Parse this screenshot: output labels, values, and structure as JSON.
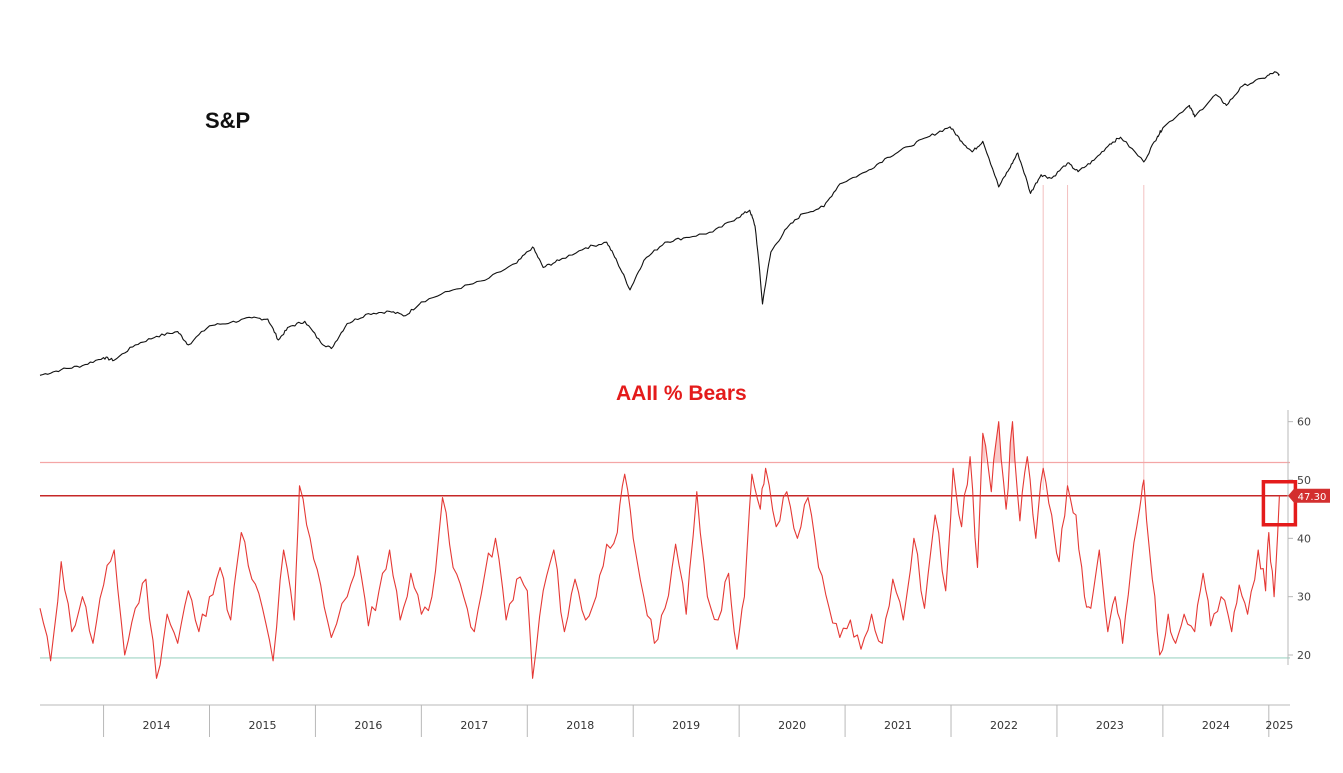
{
  "colors": {
    "sp_line": "#111111",
    "bears_line": "#e53935",
    "upper_band": "#f4a6a6",
    "ref_line": "#c62828",
    "lower_band": "#9fd4c4",
    "highlight_box": "#e41b1b",
    "badge": "#d32f2f",
    "axis": "#b8b8b8",
    "drop_lines": "#f3c0c0",
    "fill": "#f8b4b4"
  },
  "chart_data": [
    {
      "type": "line",
      "title": "S&P",
      "x_range": [
        2013.4,
        2025.2
      ],
      "series": [
        {
          "name": "",
          "points": [
            [
              2013.4,
              1650
            ],
            [
              2013.6,
              1690
            ],
            [
              2013.8,
              1720
            ],
            [
              2014.0,
              1780
            ],
            [
              2014.1,
              1760
            ],
            [
              2014.3,
              1880
            ],
            [
              2014.5,
              1950
            ],
            [
              2014.7,
              1990
            ],
            [
              2014.8,
              1880
            ],
            [
              2015.0,
              2040
            ],
            [
              2015.2,
              2070
            ],
            [
              2015.4,
              2110
            ],
            [
              2015.55,
              2100
            ],
            [
              2015.65,
              1920
            ],
            [
              2015.75,
              2030
            ],
            [
              2015.9,
              2080
            ],
            [
              2016.05,
              1900
            ],
            [
              2016.15,
              1850
            ],
            [
              2016.3,
              2060
            ],
            [
              2016.5,
              2150
            ],
            [
              2016.7,
              2170
            ],
            [
              2016.85,
              2130
            ],
            [
              2017.0,
              2260
            ],
            [
              2017.3,
              2380
            ],
            [
              2017.6,
              2480
            ],
            [
              2017.9,
              2670
            ],
            [
              2018.05,
              2860
            ],
            [
              2018.15,
              2620
            ],
            [
              2018.3,
              2700
            ],
            [
              2018.55,
              2850
            ],
            [
              2018.75,
              2920
            ],
            [
              2018.85,
              2680
            ],
            [
              2018.97,
              2380
            ],
            [
              2019.1,
              2700
            ],
            [
              2019.3,
              2920
            ],
            [
              2019.5,
              2980
            ],
            [
              2019.75,
              3050
            ],
            [
              2019.98,
              3240
            ],
            [
              2020.1,
              3350
            ],
            [
              2020.15,
              3130
            ],
            [
              2020.22,
              2240
            ],
            [
              2020.3,
              2800
            ],
            [
              2020.45,
              3100
            ],
            [
              2020.6,
              3300
            ],
            [
              2020.8,
              3400
            ],
            [
              2020.95,
              3750
            ],
            [
              2021.2,
              3950
            ],
            [
              2021.4,
              4200
            ],
            [
              2021.6,
              4400
            ],
            [
              2021.8,
              4600
            ],
            [
              2021.99,
              4790
            ],
            [
              2022.1,
              4500
            ],
            [
              2022.2,
              4300
            ],
            [
              2022.3,
              4500
            ],
            [
              2022.45,
              3700
            ],
            [
              2022.55,
              4000
            ],
            [
              2022.63,
              4280
            ],
            [
              2022.75,
              3600
            ],
            [
              2022.85,
              3900
            ],
            [
              2022.95,
              3840
            ],
            [
              2023.1,
              4100
            ],
            [
              2023.2,
              3950
            ],
            [
              2023.35,
              4150
            ],
            [
              2023.5,
              4450
            ],
            [
              2023.6,
              4580
            ],
            [
              2023.82,
              4120
            ],
            [
              2023.95,
              4600
            ],
            [
              2024.0,
              4770
            ],
            [
              2024.25,
              5250
            ],
            [
              2024.3,
              5000
            ],
            [
              2024.5,
              5500
            ],
            [
              2024.6,
              5250
            ],
            [
              2024.75,
              5700
            ],
            [
              2024.95,
              5900
            ],
            [
              2025.05,
              6050
            ],
            [
              2025.1,
              6000
            ]
          ]
        }
      ]
    },
    {
      "type": "line",
      "title": "AAII % Bears",
      "x_range": [
        2013.4,
        2025.2
      ],
      "ylim": [
        14,
        62
      ],
      "yticks": [
        "20",
        "30",
        "40",
        "50",
        "60"
      ],
      "xticks": [
        "2014",
        "2015",
        "2016",
        "2017",
        "2018",
        "2019",
        "2020",
        "2021",
        "2022",
        "2023",
        "2024",
        "2025"
      ],
      "reference_lines": [
        53,
        47.3,
        19.5
      ],
      "last_value_label": "47.30",
      "series": [
        {
          "name": "",
          "points": [
            [
              2013.4,
              28
            ],
            [
              2013.5,
              19
            ],
            [
              2013.6,
              36
            ],
            [
              2013.7,
              24
            ],
            [
              2013.8,
              30
            ],
            [
              2013.9,
              22
            ],
            [
              2014.0,
              32
            ],
            [
              2014.1,
              38
            ],
            [
              2014.2,
              20
            ],
            [
              2014.3,
              28
            ],
            [
              2014.4,
              33
            ],
            [
              2014.5,
              16
            ],
            [
              2014.6,
              27
            ],
            [
              2014.7,
              22
            ],
            [
              2014.8,
              31
            ],
            [
              2014.9,
              24
            ],
            [
              2015.0,
              30
            ],
            [
              2015.1,
              35
            ],
            [
              2015.2,
              26
            ],
            [
              2015.3,
              41
            ],
            [
              2015.4,
              33
            ],
            [
              2015.5,
              28
            ],
            [
              2015.6,
              19
            ],
            [
              2015.7,
              38
            ],
            [
              2015.8,
              26
            ],
            [
              2015.85,
              49
            ],
            [
              2015.95,
              40
            ],
            [
              2016.05,
              32
            ],
            [
              2016.15,
              23
            ],
            [
              2016.3,
              30
            ],
            [
              2016.4,
              37
            ],
            [
              2016.5,
              25
            ],
            [
              2016.6,
              31
            ],
            [
              2016.7,
              38
            ],
            [
              2016.8,
              26
            ],
            [
              2016.9,
              34
            ],
            [
              2017.0,
              27
            ],
            [
              2017.1,
              30
            ],
            [
              2017.2,
              47
            ],
            [
              2017.3,
              35
            ],
            [
              2017.4,
              30
            ],
            [
              2017.5,
              24
            ],
            [
              2017.6,
              34
            ],
            [
              2017.7,
              40
            ],
            [
              2017.8,
              26
            ],
            [
              2017.9,
              33
            ],
            [
              2018.0,
              31
            ],
            [
              2018.05,
              16
            ],
            [
              2018.15,
              31
            ],
            [
              2018.25,
              38
            ],
            [
              2018.35,
              24
            ],
            [
              2018.45,
              33
            ],
            [
              2018.55,
              26
            ],
            [
              2018.65,
              30
            ],
            [
              2018.75,
              39
            ],
            [
              2018.85,
              41
            ],
            [
              2018.92,
              51
            ],
            [
              2019.0,
              40
            ],
            [
              2019.1,
              30
            ],
            [
              2019.2,
              22
            ],
            [
              2019.3,
              28
            ],
            [
              2019.4,
              39
            ],
            [
              2019.5,
              27
            ],
            [
              2019.6,
              48
            ],
            [
              2019.7,
              30
            ],
            [
              2019.8,
              26
            ],
            [
              2019.9,
              34
            ],
            [
              2019.98,
              21
            ],
            [
              2020.05,
              30
            ],
            [
              2020.12,
              51
            ],
            [
              2020.2,
              45
            ],
            [
              2020.25,
              52
            ],
            [
              2020.35,
              42
            ],
            [
              2020.45,
              48
            ],
            [
              2020.55,
              40
            ],
            [
              2020.65,
              47
            ],
            [
              2020.75,
              35
            ],
            [
              2020.85,
              28
            ],
            [
              2020.95,
              23
            ],
            [
              2021.05,
              26
            ],
            [
              2021.15,
              21
            ],
            [
              2021.25,
              27
            ],
            [
              2021.35,
              22
            ],
            [
              2021.45,
              33
            ],
            [
              2021.55,
              26
            ],
            [
              2021.65,
              40
            ],
            [
              2021.75,
              28
            ],
            [
              2021.85,
              44
            ],
            [
              2021.95,
              31
            ],
            [
              2022.02,
              52
            ],
            [
              2022.1,
              42
            ],
            [
              2022.18,
              54
            ],
            [
              2022.25,
              35
            ],
            [
              2022.3,
              58
            ],
            [
              2022.38,
              48
            ],
            [
              2022.45,
              60
            ],
            [
              2022.52,
              45
            ],
            [
              2022.58,
              60
            ],
            [
              2022.65,
              43
            ],
            [
              2022.72,
              54
            ],
            [
              2022.8,
              40
            ],
            [
              2022.87,
              52
            ],
            [
              2022.95,
              44
            ],
            [
              2023.02,
              36
            ],
            [
              2023.1,
              49
            ],
            [
              2023.18,
              44
            ],
            [
              2023.26,
              30
            ],
            [
              2023.32,
              28
            ],
            [
              2023.4,
              38
            ],
            [
              2023.48,
              24
            ],
            [
              2023.55,
              30
            ],
            [
              2023.62,
              22
            ],
            [
              2023.7,
              35
            ],
            [
              2023.78,
              45
            ],
            [
              2023.82,
              50
            ],
            [
              2023.9,
              33
            ],
            [
              2023.97,
              20
            ],
            [
              2024.05,
              27
            ],
            [
              2024.12,
              22
            ],
            [
              2024.2,
              27
            ],
            [
              2024.3,
              24
            ],
            [
              2024.38,
              34
            ],
            [
              2024.45,
              25
            ],
            [
              2024.55,
              30
            ],
            [
              2024.65,
              24
            ],
            [
              2024.72,
              32
            ],
            [
              2024.8,
              27
            ],
            [
              2024.9,
              38
            ],
            [
              2024.97,
              31
            ],
            [
              2025.0,
              41
            ],
            [
              2025.05,
              30
            ],
            [
              2025.1,
              47.3
            ]
          ]
        }
      ]
    }
  ]
}
